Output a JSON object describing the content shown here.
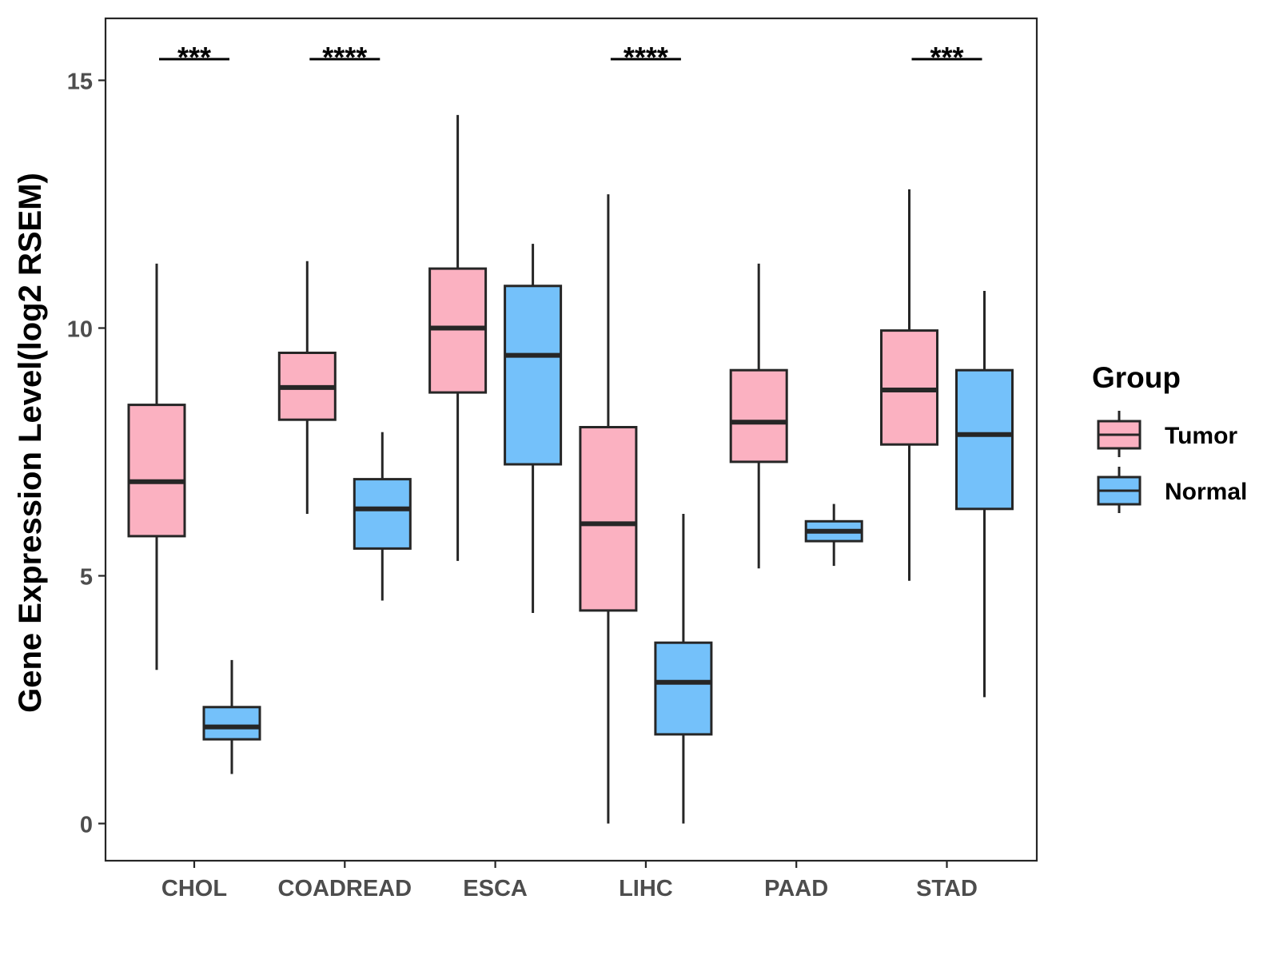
{
  "chart_data": {
    "type": "boxplot",
    "title": "",
    "xlabel": "",
    "ylabel": "Gene Expression Level(log2 RSEM)",
    "ylim": [
      -0.75,
      16.25
    ],
    "yticks": [
      0,
      5,
      10,
      15
    ],
    "grid": false,
    "categories": [
      "CHOL",
      "COADREAD",
      "ESCA",
      "LIHC",
      "PAAD",
      "STAD"
    ],
    "series": [
      {
        "name": "Tumor",
        "color": "#FBB1C1",
        "boxes": [
          {
            "min": 3.1,
            "q1": 5.8,
            "median": 6.9,
            "q3": 8.45,
            "max": 11.3
          },
          {
            "min": 6.25,
            "q1": 8.15,
            "median": 8.8,
            "q3": 9.5,
            "max": 11.35
          },
          {
            "min": 5.3,
            "q1": 8.7,
            "median": 10.0,
            "q3": 11.2,
            "max": 14.3
          },
          {
            "min": 0.0,
            "q1": 4.3,
            "median": 6.05,
            "q3": 8.0,
            "max": 12.7
          },
          {
            "min": 5.15,
            "q1": 7.3,
            "median": 8.1,
            "q3": 9.15,
            "max": 11.3
          },
          {
            "min": 4.9,
            "q1": 7.65,
            "median": 8.75,
            "q3": 9.95,
            "max": 12.8
          }
        ]
      },
      {
        "name": "Normal",
        "color": "#74C1FA",
        "boxes": [
          {
            "min": 1.0,
            "q1": 1.7,
            "median": 1.95,
            "q3": 2.35,
            "max": 3.3
          },
          {
            "min": 4.5,
            "q1": 5.55,
            "median": 6.35,
            "q3": 6.95,
            "max": 7.9
          },
          {
            "min": 4.25,
            "q1": 7.25,
            "median": 9.45,
            "q3": 10.85,
            "max": 11.7
          },
          {
            "min": 0.0,
            "q1": 1.8,
            "median": 2.85,
            "q3": 3.65,
            "max": 6.25
          },
          {
            "min": 5.2,
            "q1": 5.7,
            "median": 5.9,
            "q3": 6.1,
            "max": 6.45
          },
          {
            "min": 2.55,
            "q1": 6.35,
            "median": 7.85,
            "q3": 9.15,
            "max": 10.75
          }
        ]
      }
    ],
    "significance": [
      {
        "category": "CHOL",
        "label": "***"
      },
      {
        "category": "COADREAD",
        "label": "****"
      },
      {
        "category": "LIHC",
        "label": "****"
      },
      {
        "category": "STAD",
        "label": "***"
      }
    ],
    "legend": {
      "title": "Group",
      "position": "right",
      "entries": [
        "Tumor",
        "Normal"
      ]
    }
  }
}
